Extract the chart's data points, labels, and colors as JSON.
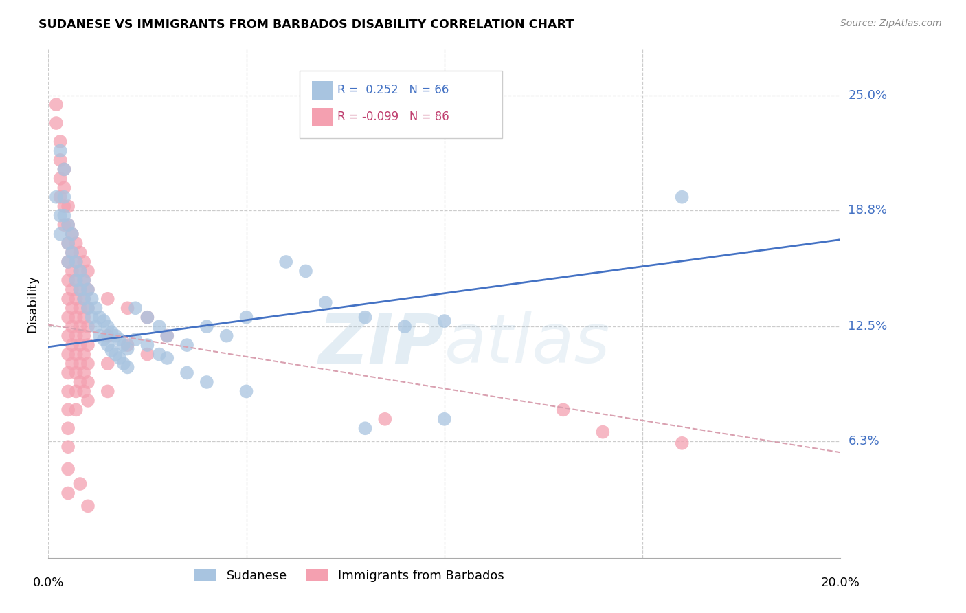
{
  "title": "SUDANESE VS IMMIGRANTS FROM BARBADOS DISABILITY CORRELATION CHART",
  "source": "Source: ZipAtlas.com",
  "ylabel": "Disability",
  "ytick_labels": [
    "25.0%",
    "18.8%",
    "12.5%",
    "6.3%"
  ],
  "ytick_values": [
    0.25,
    0.188,
    0.125,
    0.063
  ],
  "xlim": [
    0.0,
    0.2
  ],
  "ylim": [
    0.0,
    0.275
  ],
  "sudanese_color": "#a8c4e0",
  "barbados_color": "#f4a0b0",
  "sudanese_line_color": "#4472c4",
  "barbados_line_color": "#d9a0b0",
  "watermark_color": "#dde8f0",
  "sudanese_line": [
    0.0,
    0.114,
    0.2,
    0.172
  ],
  "barbados_line": [
    0.0,
    0.126,
    0.2,
    0.057
  ],
  "sudanese_points": [
    [
      0.002,
      0.195
    ],
    [
      0.003,
      0.22
    ],
    [
      0.004,
      0.21
    ],
    [
      0.003,
      0.185
    ],
    [
      0.003,
      0.175
    ],
    [
      0.004,
      0.195
    ],
    [
      0.004,
      0.185
    ],
    [
      0.005,
      0.18
    ],
    [
      0.005,
      0.17
    ],
    [
      0.005,
      0.16
    ],
    [
      0.006,
      0.175
    ],
    [
      0.006,
      0.165
    ],
    [
      0.007,
      0.16
    ],
    [
      0.007,
      0.15
    ],
    [
      0.008,
      0.155
    ],
    [
      0.008,
      0.145
    ],
    [
      0.009,
      0.15
    ],
    [
      0.009,
      0.14
    ],
    [
      0.01,
      0.145
    ],
    [
      0.01,
      0.135
    ],
    [
      0.011,
      0.14
    ],
    [
      0.011,
      0.13
    ],
    [
      0.012,
      0.135
    ],
    [
      0.012,
      0.125
    ],
    [
      0.013,
      0.13
    ],
    [
      0.013,
      0.12
    ],
    [
      0.014,
      0.128
    ],
    [
      0.014,
      0.118
    ],
    [
      0.015,
      0.125
    ],
    [
      0.015,
      0.115
    ],
    [
      0.016,
      0.122
    ],
    [
      0.016,
      0.112
    ],
    [
      0.017,
      0.12
    ],
    [
      0.017,
      0.11
    ],
    [
      0.018,
      0.118
    ],
    [
      0.018,
      0.108
    ],
    [
      0.019,
      0.115
    ],
    [
      0.019,
      0.105
    ],
    [
      0.02,
      0.113
    ],
    [
      0.02,
      0.103
    ],
    [
      0.022,
      0.135
    ],
    [
      0.022,
      0.118
    ],
    [
      0.025,
      0.13
    ],
    [
      0.025,
      0.115
    ],
    [
      0.028,
      0.125
    ],
    [
      0.028,
      0.11
    ],
    [
      0.03,
      0.12
    ],
    [
      0.03,
      0.108
    ],
    [
      0.035,
      0.115
    ],
    [
      0.035,
      0.1
    ],
    [
      0.04,
      0.125
    ],
    [
      0.04,
      0.095
    ],
    [
      0.045,
      0.12
    ],
    [
      0.05,
      0.13
    ],
    [
      0.06,
      0.16
    ],
    [
      0.065,
      0.155
    ],
    [
      0.07,
      0.138
    ],
    [
      0.08,
      0.13
    ],
    [
      0.09,
      0.125
    ],
    [
      0.1,
      0.128
    ],
    [
      0.16,
      0.195
    ],
    [
      0.05,
      0.09
    ],
    [
      0.08,
      0.07
    ],
    [
      0.1,
      0.075
    ]
  ],
  "barbados_points": [
    [
      0.002,
      0.245
    ],
    [
      0.002,
      0.235
    ],
    [
      0.003,
      0.225
    ],
    [
      0.003,
      0.215
    ],
    [
      0.003,
      0.205
    ],
    [
      0.003,
      0.195
    ],
    [
      0.004,
      0.21
    ],
    [
      0.004,
      0.2
    ],
    [
      0.004,
      0.19
    ],
    [
      0.004,
      0.18
    ],
    [
      0.005,
      0.19
    ],
    [
      0.005,
      0.18
    ],
    [
      0.005,
      0.17
    ],
    [
      0.005,
      0.16
    ],
    [
      0.005,
      0.15
    ],
    [
      0.005,
      0.14
    ],
    [
      0.005,
      0.13
    ],
    [
      0.005,
      0.12
    ],
    [
      0.005,
      0.11
    ],
    [
      0.005,
      0.1
    ],
    [
      0.005,
      0.09
    ],
    [
      0.005,
      0.08
    ],
    [
      0.005,
      0.07
    ],
    [
      0.005,
      0.06
    ],
    [
      0.006,
      0.175
    ],
    [
      0.006,
      0.165
    ],
    [
      0.006,
      0.155
    ],
    [
      0.006,
      0.145
    ],
    [
      0.006,
      0.135
    ],
    [
      0.006,
      0.125
    ],
    [
      0.006,
      0.115
    ],
    [
      0.006,
      0.105
    ],
    [
      0.007,
      0.17
    ],
    [
      0.007,
      0.16
    ],
    [
      0.007,
      0.15
    ],
    [
      0.007,
      0.14
    ],
    [
      0.007,
      0.13
    ],
    [
      0.007,
      0.12
    ],
    [
      0.007,
      0.11
    ],
    [
      0.007,
      0.1
    ],
    [
      0.007,
      0.09
    ],
    [
      0.007,
      0.08
    ],
    [
      0.008,
      0.165
    ],
    [
      0.008,
      0.155
    ],
    [
      0.008,
      0.145
    ],
    [
      0.008,
      0.135
    ],
    [
      0.008,
      0.125
    ],
    [
      0.008,
      0.115
    ],
    [
      0.008,
      0.105
    ],
    [
      0.008,
      0.095
    ],
    [
      0.009,
      0.16
    ],
    [
      0.009,
      0.15
    ],
    [
      0.009,
      0.14
    ],
    [
      0.009,
      0.13
    ],
    [
      0.009,
      0.12
    ],
    [
      0.009,
      0.11
    ],
    [
      0.009,
      0.1
    ],
    [
      0.009,
      0.09
    ],
    [
      0.01,
      0.155
    ],
    [
      0.01,
      0.145
    ],
    [
      0.01,
      0.135
    ],
    [
      0.01,
      0.125
    ],
    [
      0.01,
      0.115
    ],
    [
      0.01,
      0.105
    ],
    [
      0.01,
      0.095
    ],
    [
      0.01,
      0.085
    ],
    [
      0.015,
      0.14
    ],
    [
      0.015,
      0.12
    ],
    [
      0.015,
      0.105
    ],
    [
      0.015,
      0.09
    ],
    [
      0.02,
      0.135
    ],
    [
      0.02,
      0.115
    ],
    [
      0.025,
      0.13
    ],
    [
      0.025,
      0.11
    ],
    [
      0.03,
      0.12
    ],
    [
      0.005,
      0.048
    ],
    [
      0.005,
      0.035
    ],
    [
      0.008,
      0.04
    ],
    [
      0.01,
      0.028
    ],
    [
      0.13,
      0.08
    ],
    [
      0.085,
      0.075
    ],
    [
      0.14,
      0.068
    ],
    [
      0.16,
      0.062
    ]
  ]
}
